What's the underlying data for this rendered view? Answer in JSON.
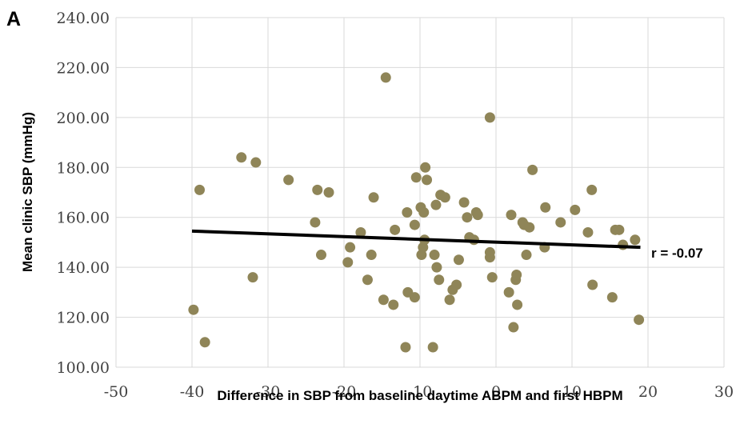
{
  "panel_label": "A",
  "chart_data": {
    "type": "scatter",
    "xlabel": "Difference in SBP from baseline daytime ABPM and first HBPM",
    "ylabel": "Mean clinic SBP (mmHg)",
    "xlim": [
      -50,
      30
    ],
    "ylim": [
      100,
      240
    ],
    "x_ticks": [
      "-50",
      "-40",
      "-30",
      "-20",
      "-10",
      "0",
      "10",
      "20",
      "30"
    ],
    "y_ticks": [
      "100.00",
      "120.00",
      "140.00",
      "160.00",
      "180.00",
      "200.00",
      "220.00",
      "240.00"
    ],
    "grid": true,
    "marker_color": "#8f8558",
    "trendline": {
      "x": [
        -40,
        19
      ],
      "y": [
        154.5,
        148.0
      ],
      "color": "#000000"
    },
    "annotation": "r = -0.07",
    "points": [
      {
        "x": -39.8,
        "y": 123
      },
      {
        "x": -39.0,
        "y": 171
      },
      {
        "x": -38.3,
        "y": 110
      },
      {
        "x": -33.5,
        "y": 184
      },
      {
        "x": -32.0,
        "y": 136
      },
      {
        "x": -31.6,
        "y": 182
      },
      {
        "x": -27.3,
        "y": 175
      },
      {
        "x": -23.8,
        "y": 158
      },
      {
        "x": -23.5,
        "y": 171
      },
      {
        "x": -23.0,
        "y": 145
      },
      {
        "x": -22.0,
        "y": 170
      },
      {
        "x": -19.5,
        "y": 142
      },
      {
        "x": -19.2,
        "y": 148
      },
      {
        "x": -17.8,
        "y": 154
      },
      {
        "x": -16.9,
        "y": 135
      },
      {
        "x": -16.4,
        "y": 145
      },
      {
        "x": -16.1,
        "y": 168
      },
      {
        "x": -14.8,
        "y": 127
      },
      {
        "x": -14.5,
        "y": 216
      },
      {
        "x": -13.5,
        "y": 125
      },
      {
        "x": -13.3,
        "y": 155
      },
      {
        "x": -11.9,
        "y": 108
      },
      {
        "x": -11.7,
        "y": 162
      },
      {
        "x": -11.6,
        "y": 130
      },
      {
        "x": -10.7,
        "y": 157
      },
      {
        "x": -10.7,
        "y": 128
      },
      {
        "x": -10.5,
        "y": 176
      },
      {
        "x": -9.9,
        "y": 164
      },
      {
        "x": -9.8,
        "y": 145
      },
      {
        "x": -9.6,
        "y": 148
      },
      {
        "x": -9.5,
        "y": 162
      },
      {
        "x": -9.4,
        "y": 151
      },
      {
        "x": -9.3,
        "y": 180
      },
      {
        "x": -9.1,
        "y": 175
      },
      {
        "x": -8.3,
        "y": 108
      },
      {
        "x": -8.1,
        "y": 145
      },
      {
        "x": -7.9,
        "y": 165
      },
      {
        "x": -7.8,
        "y": 140
      },
      {
        "x": -7.5,
        "y": 135
      },
      {
        "x": -7.3,
        "y": 169
      },
      {
        "x": -6.7,
        "y": 168
      },
      {
        "x": -6.1,
        "y": 127
      },
      {
        "x": -5.7,
        "y": 131
      },
      {
        "x": -5.2,
        "y": 133
      },
      {
        "x": -4.9,
        "y": 143
      },
      {
        "x": -4.2,
        "y": 166
      },
      {
        "x": -3.8,
        "y": 160
      },
      {
        "x": -3.5,
        "y": 152
      },
      {
        "x": -2.9,
        "y": 151
      },
      {
        "x": -2.6,
        "y": 162
      },
      {
        "x": -2.4,
        "y": 161
      },
      {
        "x": -0.8,
        "y": 144
      },
      {
        "x": -0.8,
        "y": 146
      },
      {
        "x": -0.8,
        "y": 200
      },
      {
        "x": -0.5,
        "y": 136
      },
      {
        "x": 1.7,
        "y": 130
      },
      {
        "x": 2.0,
        "y": 161
      },
      {
        "x": 2.3,
        "y": 116
      },
      {
        "x": 2.6,
        "y": 135
      },
      {
        "x": 2.7,
        "y": 137
      },
      {
        "x": 2.8,
        "y": 125
      },
      {
        "x": 3.5,
        "y": 158
      },
      {
        "x": 3.7,
        "y": 157
      },
      {
        "x": 4.0,
        "y": 145
      },
      {
        "x": 4.4,
        "y": 156
      },
      {
        "x": 4.8,
        "y": 179
      },
      {
        "x": 6.4,
        "y": 148
      },
      {
        "x": 6.5,
        "y": 164
      },
      {
        "x": 8.5,
        "y": 158
      },
      {
        "x": 10.4,
        "y": 163
      },
      {
        "x": 12.1,
        "y": 154
      },
      {
        "x": 12.6,
        "y": 171
      },
      {
        "x": 12.7,
        "y": 133
      },
      {
        "x": 15.3,
        "y": 128
      },
      {
        "x": 15.7,
        "y": 155
      },
      {
        "x": 16.2,
        "y": 155
      },
      {
        "x": 16.7,
        "y": 149
      },
      {
        "x": 18.3,
        "y": 151
      },
      {
        "x": 18.8,
        "y": 119
      }
    ]
  }
}
